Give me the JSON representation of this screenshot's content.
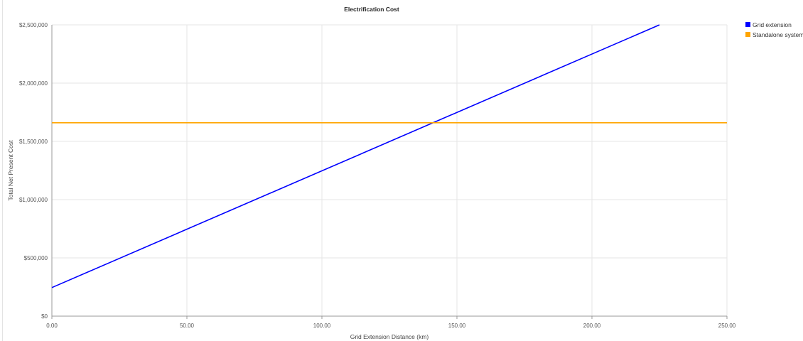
{
  "chart_data": {
    "type": "line",
    "title": "Electrification Cost",
    "xlabel": "Grid Extension Distance (km)",
    "ylabel": "Total Net Present Cost",
    "xlim": [
      0,
      250
    ],
    "ylim": [
      0,
      2500000
    ],
    "x_ticks": [
      "0.00",
      "50.00",
      "100.00",
      "150.00",
      "200.00",
      "250.00"
    ],
    "y_ticks": [
      "$0",
      "$500,000",
      "$1,000,000",
      "$1,500,000",
      "$2,000,000",
      "$2,500,000"
    ],
    "grid": true,
    "legend_position": "top-right",
    "series": [
      {
        "name": "Grid extension",
        "color": "#0000ff",
        "x": [
          0,
          225
        ],
        "y": [
          245000,
          2500000
        ]
      },
      {
        "name": "Standalone system",
        "color": "#ffa500",
        "x": [
          0,
          250
        ],
        "y": [
          1660000,
          1660000
        ]
      }
    ]
  }
}
